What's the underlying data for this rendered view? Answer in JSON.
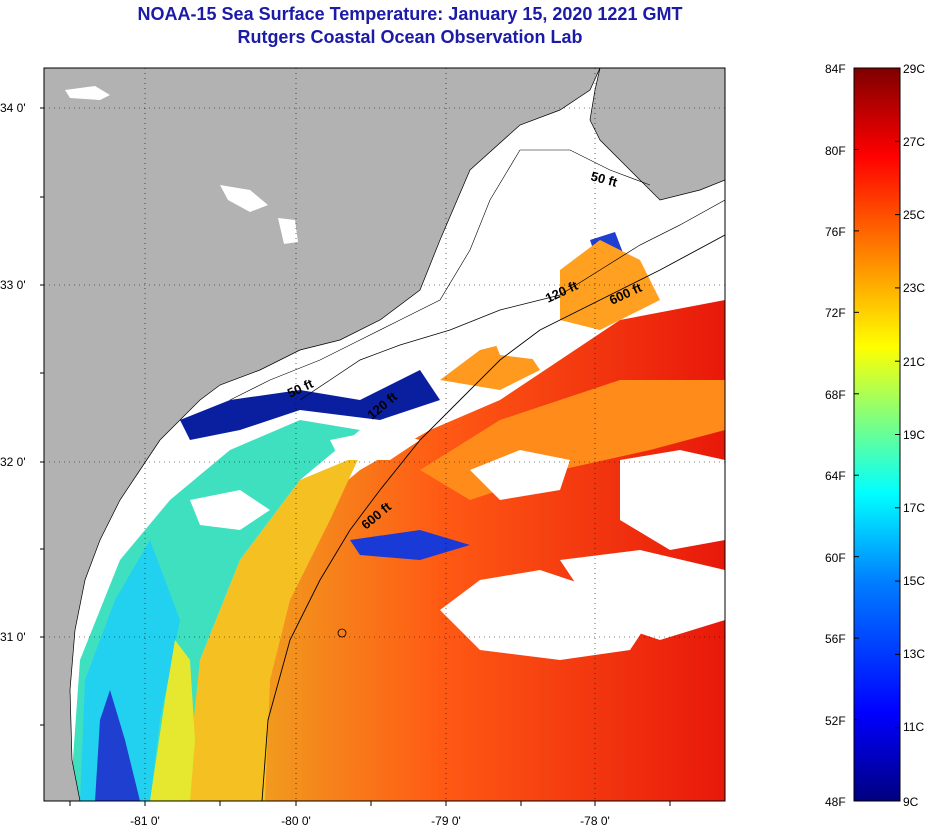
{
  "title": {
    "line1": "NOAA-15 Sea Surface Temperature:  January 15, 2020 1221 GMT",
    "line2": "Rutgers Coastal Ocean Observation Lab"
  },
  "map": {
    "lat_labels": [
      "34 0'",
      "33 0'",
      "32 0'",
      "31 0'"
    ],
    "lon_labels": [
      "-81 0'",
      "-80 0'",
      "-79 0'",
      "-78 0'"
    ],
    "contour_labels": [
      "50 ft",
      "120 ft",
      "600 ft",
      "50 ft",
      "120 ft",
      "600 ft"
    ],
    "colors": {
      "land": "#b2b2b2",
      "cloud": "#ffffff"
    }
  },
  "colorbar": {
    "fahrenheit": [
      "84F",
      "80F",
      "76F",
      "72F",
      "68F",
      "64F",
      "60F",
      "56F",
      "52F",
      "48F"
    ],
    "celsius": [
      "29C",
      "27C",
      "25C",
      "23C",
      "21C",
      "19C",
      "17C",
      "15C",
      "13C",
      "11C",
      "9C"
    ],
    "gradient": [
      "#00007f",
      "#0000ff",
      "#007fff",
      "#00ffff",
      "#7fff7f",
      "#ffff00",
      "#ff7f00",
      "#ff0000",
      "#7f0000"
    ]
  }
}
